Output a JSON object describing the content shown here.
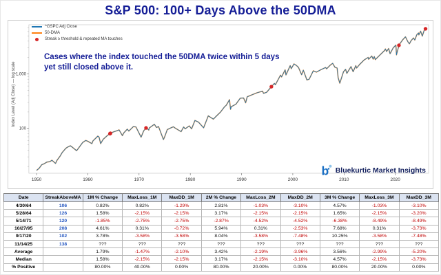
{
  "title": "S&P 500: 100+ Days Above the 50DMA",
  "brand": {
    "name": "Bluekurtic Market Insights"
  },
  "colors": {
    "accent_navy": "#141d96",
    "price_line": "#1f77b4",
    "ma_line": "#ff7f0e",
    "marker_red": "#d62728",
    "negative_text": "#c00000",
    "streak_blue": "#2456c0",
    "table_header_bg": "#dbe3f1"
  },
  "chart_data": {
    "type": "line",
    "title": "",
    "xlabel": "",
    "ylabel": "Index Level (Adj Close) — log scale",
    "y_scale": "log",
    "grid": false,
    "legend_position": "upper-left",
    "xlim": [
      1948.5,
      2026.5
    ],
    "ylim_log": [
      15,
      8000
    ],
    "x_ticks": [
      1950,
      1960,
      1970,
      1980,
      1990,
      2000,
      2010,
      2020
    ],
    "y_ticks": [
      100,
      1000
    ],
    "y_tick_labels": [
      "100",
      "1,000"
    ],
    "annotation": "Cases where the index touched the 50DMA twice within 5 days yet still closed above it.",
    "legend": [
      {
        "label": "^GSPC Adj Close",
        "type": "line",
        "color": "#1f77b4"
      },
      {
        "label": "50-DMA",
        "type": "line",
        "color": "#ff7f0e"
      },
      {
        "label": "Streak ≥ threshold & repeated MA touches",
        "type": "dot",
        "color": "#d62728"
      }
    ],
    "series": [
      {
        "name": "^GSPC Adj Close",
        "color": "#1f77b4",
        "points": [
          [
            1950,
            16.9
          ],
          [
            1950.5,
            18.5
          ],
          [
            1951,
            21.5
          ],
          [
            1951.5,
            22.5
          ],
          [
            1952,
            24
          ],
          [
            1952.6,
            24.5
          ],
          [
            1953,
            26
          ],
          [
            1953.7,
            22.7
          ],
          [
            1954,
            26
          ],
          [
            1954.6,
            31
          ],
          [
            1955,
            36
          ],
          [
            1955.7,
            43
          ],
          [
            1956,
            45
          ],
          [
            1956.6,
            48
          ],
          [
            1957,
            45
          ],
          [
            1957.8,
            39
          ],
          [
            1958,
            41
          ],
          [
            1958.8,
            52
          ],
          [
            1959,
            55
          ],
          [
            1959.6,
            60
          ],
          [
            1960,
            58
          ],
          [
            1960.8,
            52.5
          ],
          [
            1961,
            59
          ],
          [
            1961.95,
            72
          ],
          [
            1962.2,
            69
          ],
          [
            1962.5,
            52.5
          ],
          [
            1963,
            63
          ],
          [
            1963.9,
            75
          ],
          [
            1964.33,
            80
          ],
          [
            1964.41,
            81
          ],
          [
            1965,
            86
          ],
          [
            1965.9,
            92
          ],
          [
            1966.1,
            94
          ],
          [
            1966.75,
            73.5
          ],
          [
            1967,
            82
          ],
          [
            1967.7,
            97
          ],
          [
            1968,
            89
          ],
          [
            1968.9,
            108
          ],
          [
            1969.4,
            106
          ],
          [
            1970.4,
            69
          ],
          [
            1970.9,
            90
          ],
          [
            1971.37,
            102
          ],
          [
            1971.6,
            99
          ],
          [
            1971.9,
            93
          ],
          [
            1972,
            102
          ],
          [
            1972.98,
            119
          ],
          [
            1973.4,
            104
          ],
          [
            1973.8,
            108
          ],
          [
            1974.75,
            62.3
          ],
          [
            1975,
            70
          ],
          [
            1975.5,
            95
          ],
          [
            1976,
            100
          ],
          [
            1976.7,
            107
          ],
          [
            1977,
            102
          ],
          [
            1978.2,
            87
          ],
          [
            1978.7,
            106
          ],
          [
            1979,
            98
          ],
          [
            1979.8,
            111
          ],
          [
            1980.25,
            98
          ],
          [
            1980.9,
            140
          ],
          [
            1981.6,
            130
          ],
          [
            1982.6,
            102.4
          ],
          [
            1983.5,
            170
          ],
          [
            1984.5,
            148
          ],
          [
            1985,
            165
          ],
          [
            1985.9,
            200
          ],
          [
            1986.7,
            250
          ],
          [
            1987,
            265
          ],
          [
            1987.65,
            336
          ],
          [
            1987.85,
            224
          ],
          [
            1988,
            250
          ],
          [
            1988.9,
            278
          ],
          [
            1989.75,
            359
          ],
          [
            1990.4,
            362
          ],
          [
            1990.8,
            295
          ],
          [
            1991.1,
            380
          ],
          [
            1992,
            412
          ],
          [
            1993,
            450
          ],
          [
            1994.1,
            482
          ],
          [
            1994.3,
            440
          ],
          [
            1994.9,
            460
          ],
          [
            1995.82,
            583
          ],
          [
            1996.4,
            670
          ],
          [
            1996.6,
            635
          ],
          [
            1997.6,
            950
          ],
          [
            1997.8,
            880
          ],
          [
            1998.5,
            1187
          ],
          [
            1998.67,
            957
          ],
          [
            1999.5,
            1420
          ],
          [
            1999.7,
            1250
          ],
          [
            2000.23,
            1527
          ],
          [
            2000.7,
            1430
          ],
          [
            2001.1,
            1320
          ],
          [
            2001.72,
            966
          ],
          [
            2002.05,
            1170
          ],
          [
            2002.75,
            776
          ],
          [
            2003.2,
            800
          ],
          [
            2004,
            1140
          ],
          [
            2004.6,
            1080
          ],
          [
            2005.5,
            1200
          ],
          [
            2006.4,
            1310
          ],
          [
            2006.6,
            1240
          ],
          [
            2007.3,
            1450
          ],
          [
            2007.78,
            1565
          ],
          [
            2008.2,
            1330
          ],
          [
            2008.65,
            1280
          ],
          [
            2008.85,
            850
          ],
          [
            2009.17,
            677
          ],
          [
            2009.9,
            1100
          ],
          [
            2010.3,
            1217
          ],
          [
            2010.55,
            1025
          ],
          [
            2011.35,
            1363
          ],
          [
            2011.77,
            1100
          ],
          [
            2012.3,
            1420
          ],
          [
            2012.45,
            1280
          ],
          [
            2013,
            1480
          ],
          [
            2013.9,
            1800
          ],
          [
            2014.7,
            2010
          ],
          [
            2014.8,
            1860
          ],
          [
            2015.4,
            2130
          ],
          [
            2015.68,
            1870
          ],
          [
            2015.9,
            2080
          ],
          [
            2016.1,
            1830
          ],
          [
            2016.9,
            2180
          ],
          [
            2017.9,
            2690
          ],
          [
            2018.07,
            2873
          ],
          [
            2018.3,
            2580
          ],
          [
            2018.7,
            2930
          ],
          [
            2018.98,
            2350
          ],
          [
            2019.6,
            3020
          ],
          [
            2019.9,
            3230
          ],
          [
            2020.12,
            3386
          ],
          [
            2020.23,
            2237
          ],
          [
            2020.71,
            3357
          ],
          [
            2020.9,
            3600
          ],
          [
            2021.5,
            4300
          ],
          [
            2021.98,
            4793
          ],
          [
            2022.45,
            3900
          ],
          [
            2022.75,
            3577
          ],
          [
            2023.1,
            4100
          ],
          [
            2023.55,
            4580
          ],
          [
            2023.8,
            4200
          ],
          [
            2024.2,
            5250
          ],
          [
            2024.55,
            5650
          ],
          [
            2024.6,
            5200
          ],
          [
            2024.95,
            6090
          ],
          [
            2025.27,
            4950
          ],
          [
            2025.6,
            6200
          ],
          [
            2025.9,
            6730
          ]
        ]
      }
    ],
    "markers": [
      {
        "date": "4/30/64",
        "x": 1964.33,
        "y": 80
      },
      {
        "date": "5/28/64",
        "x": 1964.41,
        "y": 81
      },
      {
        "date": "5/14/71",
        "x": 1971.37,
        "y": 102
      },
      {
        "date": "10/27/95",
        "x": 1995.82,
        "y": 583
      },
      {
        "date": "9/17/20",
        "x": 2020.71,
        "y": 3357
      },
      {
        "date": "11/14/25",
        "x": 2025.9,
        "y": 6730
      }
    ]
  },
  "table": {
    "columns": [
      "Date",
      "StreakAboveMA",
      "1M % Change",
      "MaxLoss_1M",
      "MaxDD_1M",
      "2M % Change",
      "MaxLoss_2M",
      "MaxDD_2M",
      "3M % Change",
      "MaxLoss_3M",
      "MaxDD_3M"
    ],
    "rows": [
      [
        "4/30/64",
        "106",
        "0.82%",
        "0.82%",
        "-1.29%",
        "2.81%",
        "-1.03%",
        "-3.10%",
        "4.57%",
        "-1.03%",
        "-3.10%"
      ],
      [
        "5/28/64",
        "126",
        "1.58%",
        "-2.15%",
        "-2.15%",
        "3.17%",
        "-2.15%",
        "-2.15%",
        "1.65%",
        "-2.15%",
        "-3.20%"
      ],
      [
        "5/14/71",
        "120",
        "-1.85%",
        "-2.75%",
        "-2.75%",
        "-2.87%",
        "-4.52%",
        "-4.52%",
        "-6.38%",
        "-8.49%",
        "-8.49%"
      ],
      [
        "10/27/95",
        "208",
        "4.61%",
        "0.31%",
        "-0.72%",
        "5.94%",
        "0.31%",
        "-2.53%",
        "7.68%",
        "0.31%",
        "-3.73%"
      ],
      [
        "9/17/20",
        "102",
        "3.78%",
        "-3.58%",
        "-3.58%",
        "8.04%",
        "-3.58%",
        "-7.48%",
        "10.25%",
        "-3.58%",
        "-7.48%"
      ],
      [
        "11/14/25",
        "138",
        "???",
        "???",
        "???",
        "???",
        "???",
        "???",
        "???",
        "???",
        "???"
      ]
    ],
    "summary_rows": [
      [
        "Average",
        "",
        "1.79%",
        "-1.47%",
        "-2.10%",
        "3.42%",
        "-2.19%",
        "-3.96%",
        "3.56%",
        "-2.99%",
        "-5.20%"
      ],
      [
        "Median",
        "",
        "1.58%",
        "-2.15%",
        "-2.15%",
        "3.17%",
        "-2.15%",
        "-3.10%",
        "4.57%",
        "-2.15%",
        "-3.73%"
      ],
      [
        "% Positive",
        "",
        "80.00%",
        "40.00%",
        "0.00%",
        "80.00%",
        "20.00%",
        "0.00%",
        "80.00%",
        "20.00%",
        "0.00%"
      ]
    ]
  }
}
